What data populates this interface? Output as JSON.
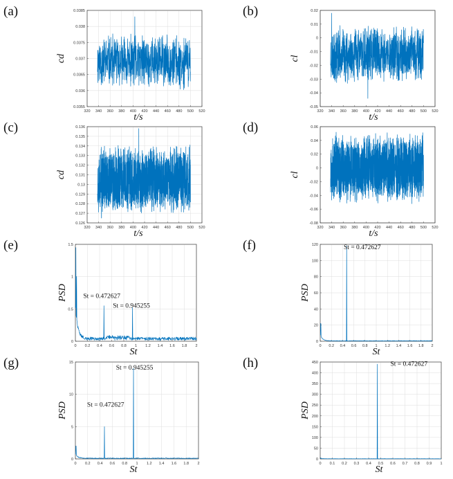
{
  "colors": {
    "series": "#0072BD",
    "axis": "#444444",
    "grid": "#dddddd"
  },
  "chart_data": [
    {
      "panel": "(a)",
      "type": "line",
      "xlabel": "t/s",
      "ylabel": "cd",
      "xlim": [
        320,
        520
      ],
      "ylim": [
        0.0355,
        0.0385
      ],
      "xticks": [
        320,
        340,
        360,
        380,
        400,
        420,
        440,
        460,
        480,
        500,
        520
      ],
      "yticks": [
        "0.0355",
        "0.036",
        "0.0365",
        "0.037",
        "0.0375",
        "0.038",
        "0.0385"
      ],
      "grid": true,
      "series": [
        {
          "x_range": [
            338,
            500
          ],
          "baseline": 0.0369,
          "amplitude": 0.0009,
          "n": 700,
          "seed": 11,
          "spikes": [
            [
              403,
              0.0383
            ]
          ]
        }
      ]
    },
    {
      "panel": "(b)",
      "type": "line",
      "xlabel": "t/s",
      "ylabel": "cl",
      "xlim": [
        320,
        520
      ],
      "ylim": [
        -0.05,
        0.02
      ],
      "xticks": [
        320,
        340,
        360,
        380,
        400,
        420,
        440,
        460,
        480,
        500,
        520
      ],
      "yticks": [
        "-0.05",
        "-0.04",
        "-0.03",
        "-0.02",
        "-0.01",
        "0",
        "0.01",
        "0.02"
      ],
      "grid": false,
      "series": [
        {
          "x_range": [
            338,
            500
          ],
          "baseline": -0.012,
          "amplitude": 0.022,
          "n": 900,
          "seed": 23,
          "spikes": [
            [
              340,
              0.018
            ],
            [
              403,
              -0.044
            ]
          ]
        }
      ]
    },
    {
      "panel": "(c)",
      "type": "line",
      "xlabel": "t/s",
      "ylabel": "cd",
      "xlim": [
        320,
        520
      ],
      "ylim": [
        0.126,
        0.136
      ],
      "xticks": [
        320,
        340,
        360,
        380,
        400,
        420,
        440,
        460,
        480,
        500,
        520
      ],
      "yticks": [
        "0.126",
        "0.127",
        "0.128",
        "0.129",
        "0.13",
        "0.131",
        "0.132",
        "0.133",
        "0.134",
        "0.135",
        "0.136"
      ],
      "grid": true,
      "series": [
        {
          "x_range": [
            338,
            500
          ],
          "baseline": 0.1305,
          "amplitude": 0.0038,
          "n": 1400,
          "seed": 37,
          "spikes": [
            [
              410,
              0.1358
            ],
            [
              345,
              0.1265
            ]
          ]
        }
      ]
    },
    {
      "panel": "(d)",
      "type": "line",
      "xlabel": "t/s",
      "ylabel": "cl",
      "xlim": [
        320,
        520
      ],
      "ylim": [
        -0.08,
        0.06
      ],
      "xticks": [
        320,
        340,
        360,
        380,
        400,
        420,
        440,
        460,
        480,
        500,
        520
      ],
      "yticks": [
        "-0.08",
        "-0.06",
        "-0.04",
        "-0.02",
        "0",
        "0.02",
        "0.04",
        "0.06"
      ],
      "grid": false,
      "series": [
        {
          "x_range": [
            338,
            500
          ],
          "baseline": 0.0,
          "amplitude": 0.054,
          "n": 1600,
          "seed": 53,
          "spikes": []
        }
      ]
    },
    {
      "panel": "(e)",
      "type": "line",
      "xlabel": "St",
      "ylabel": "PSD",
      "xlim": [
        0,
        2
      ],
      "ylim": [
        0,
        1.5
      ],
      "xticks": [
        "0",
        "0.2",
        "0.4",
        "0.6",
        "0.8",
        "1",
        "1.2",
        "1.4",
        "1.6",
        "1.8",
        "2"
      ],
      "yticks": [
        "0",
        "0.5",
        "1",
        "1.5"
      ],
      "grid": true,
      "peaks": [
        [
          0.008,
          1.45
        ],
        [
          0.02,
          1.0
        ],
        [
          0.472627,
          0.55
        ],
        [
          0.945255,
          0.52
        ]
      ],
      "noise_floor": 0.05,
      "annotations": [
        {
          "text": "St = 0.472627",
          "x": 0.13,
          "y": 0.67
        },
        {
          "text": "St = 0.945255",
          "x": 0.62,
          "y": 0.52
        }
      ]
    },
    {
      "panel": "(f)",
      "type": "line",
      "xlabel": "St",
      "ylabel": "PSD",
      "xlim": [
        0,
        2
      ],
      "ylim": [
        0,
        120
      ],
      "xticks": [
        "0",
        "0.2",
        "0.4",
        "0.6",
        "0.8",
        "1",
        "1.2",
        "1.4",
        "1.6",
        "1.8",
        "2"
      ],
      "yticks": [
        "0",
        "20",
        "40",
        "60",
        "80",
        "100",
        "120"
      ],
      "grid": true,
      "peaks": [
        [
          0.01,
          22
        ],
        [
          0.472627,
          118
        ]
      ],
      "noise_floor": 0.6,
      "annotations": [
        {
          "text": "St = 0.472627",
          "x": 0.42,
          "y": 114
        }
      ]
    },
    {
      "panel": "(g)",
      "type": "line",
      "xlabel": "St",
      "ylabel": "PSD",
      "xlim": [
        0,
        2
      ],
      "ylim": [
        0,
        15
      ],
      "xticks": [
        "0",
        "0.2",
        "0.4",
        "0.6",
        "0.8",
        "1",
        "1.2",
        "1.4",
        "1.6",
        "1.8",
        "2"
      ],
      "yticks": [
        "0",
        "5",
        "10",
        "15"
      ],
      "grid": true,
      "peaks": [
        [
          0.01,
          2.0
        ],
        [
          0.472627,
          5.0
        ],
        [
          0.945255,
          14.0
        ]
      ],
      "noise_floor": 0.12,
      "annotations": [
        {
          "text": "St = 0.945255",
          "x": 0.66,
          "y": 13.8
        },
        {
          "text": "St = 0.472627",
          "x": 0.19,
          "y": 8.1
        }
      ]
    },
    {
      "panel": "(h)",
      "type": "line",
      "xlabel": "St",
      "ylabel": "PSD",
      "xlim": [
        0,
        1
      ],
      "ylim": [
        0,
        450
      ],
      "xticks": [
        "0",
        "0.1",
        "0.2",
        "0.3",
        "0.4",
        "0.5",
        "0.6",
        "0.7",
        "0.8",
        "0.9",
        "1"
      ],
      "yticks": [
        "0",
        "50",
        "100",
        "150",
        "200",
        "250",
        "300",
        "350",
        "400",
        "450"
      ],
      "grid": true,
      "peaks": [
        [
          0.005,
          5
        ],
        [
          0.472627,
          440
        ]
      ],
      "noise_floor": 1.0,
      "annotations": [
        {
          "text": "St = 0.472627",
          "x": 0.58,
          "y": 433
        }
      ]
    }
  ]
}
